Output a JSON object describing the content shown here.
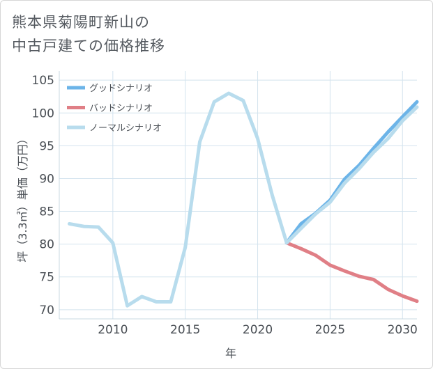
{
  "title_lines": [
    "熊本県菊陽町新山の",
    "中古戸建ての価格推移"
  ],
  "chart_data": {
    "type": "line",
    "xlabel": "年",
    "ylabel": "坪（3.3㎡）単価（万円）",
    "xlim": [
      2006.3,
      2031
    ],
    "ylim": [
      68.6,
      106.4
    ],
    "xticks": [
      2010,
      2015,
      2020,
      2025,
      2030
    ],
    "xtick_labels": [
      "2010",
      "2015",
      "2020",
      "2025",
      "2030"
    ],
    "yticks": [
      70,
      75,
      80,
      85,
      90,
      95,
      100,
      105
    ],
    "ytick_labels": [
      "70",
      "75",
      "80",
      "85",
      "90",
      "95",
      "100",
      "105"
    ],
    "grid": true,
    "legend_position": "top-left",
    "series": [
      {
        "name": "グッドシナリオ",
        "color": "#6cb4e8",
        "x": [
          2022,
          2023,
          2024,
          2025,
          2026,
          2027,
          2028,
          2029,
          2030,
          2031
        ],
        "values": [
          80.2,
          83.1,
          84.7,
          86.7,
          89.9,
          92,
          94.6,
          97.1,
          99.4,
          101.7
        ]
      },
      {
        "name": "バッドシナリオ",
        "color": "#e07f86",
        "x": [
          2022,
          2023,
          2024,
          2025,
          2026,
          2027,
          2028,
          2029,
          2030,
          2031
        ],
        "values": [
          80.2,
          79.3,
          78.3,
          76.8,
          75.9,
          75.1,
          74.6,
          73.1,
          72.1,
          71.3
        ]
      },
      {
        "name": "ノーマルシナリオ",
        "color": "#b8dced",
        "x": [
          2007,
          2008,
          2009,
          2010,
          2011,
          2012,
          2013,
          2014,
          2015,
          2016,
          2017,
          2018,
          2019,
          2020,
          2021,
          2022,
          2023,
          2024,
          2025,
          2026,
          2027,
          2028,
          2029,
          2030,
          2031
        ],
        "values": [
          83.1,
          82.7,
          82.6,
          80.2,
          70.6,
          72,
          71.2,
          71.2,
          79.5,
          95.6,
          101.7,
          103,
          101.9,
          96.1,
          87.5,
          80.2,
          82.4,
          84.6,
          86.4,
          89.3,
          91.5,
          94,
          96.1,
          98.8,
          100.9
        ]
      }
    ]
  }
}
